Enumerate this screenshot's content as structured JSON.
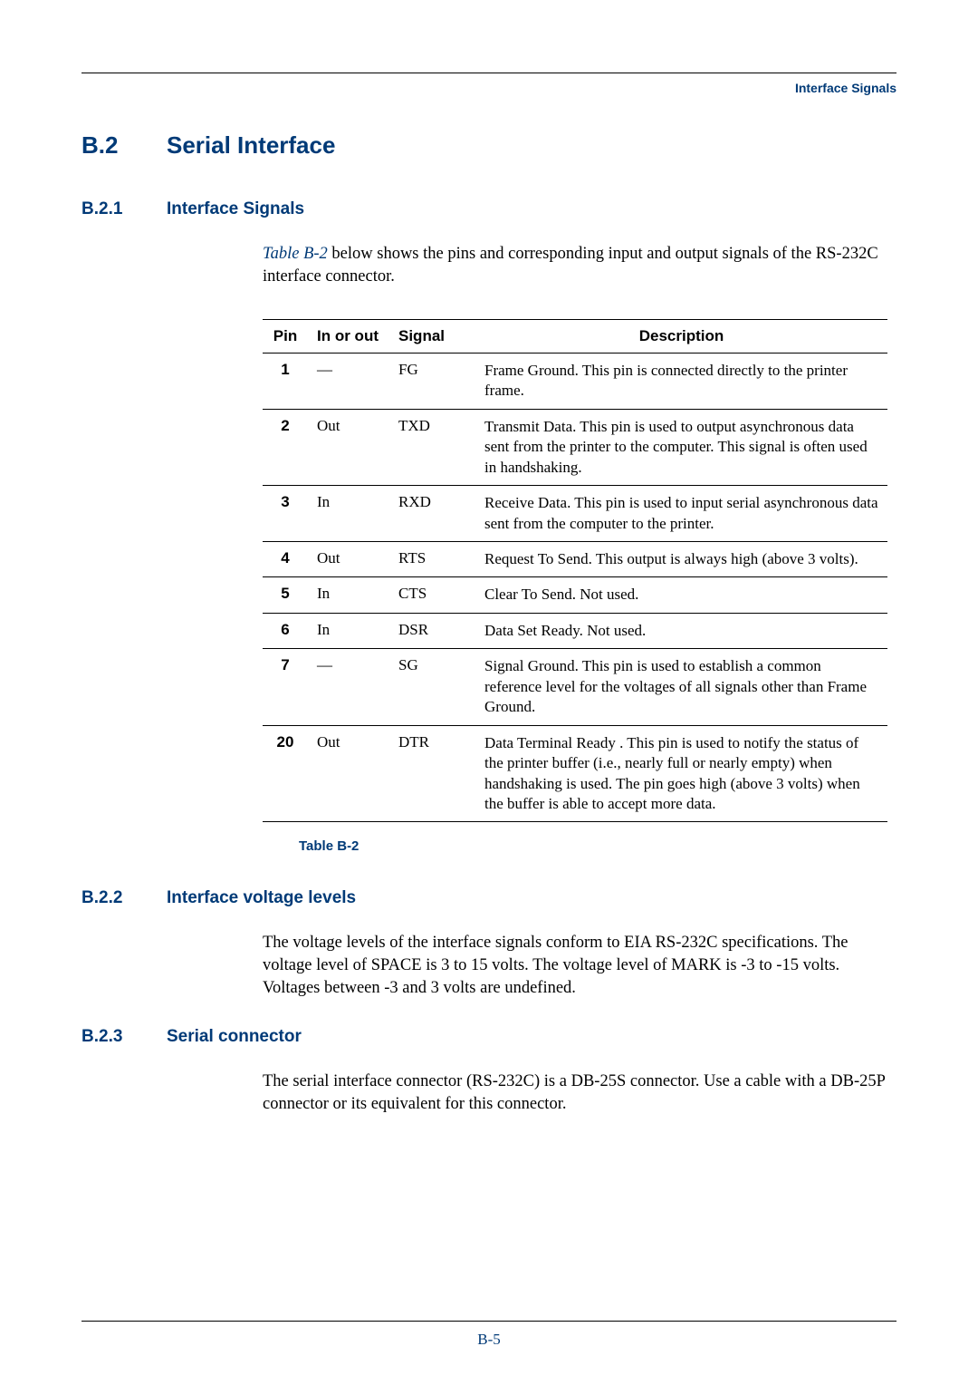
{
  "header": {
    "title": "Interface Signals"
  },
  "h1": {
    "num": "B.2",
    "title": "Serial Interface"
  },
  "sec1": {
    "num": "B.2.1",
    "title": "Interface Signals",
    "link": "Table B-2",
    "intro_rest": " below shows the pins and corresponding input and output signals of the RS-232C interface connector."
  },
  "table": {
    "headers": {
      "pin": "Pin",
      "io": "In or out",
      "signal": "Signal",
      "desc": "Description"
    },
    "rows": [
      {
        "pin": "1",
        "io": "—",
        "sig": "FG",
        "desc": "Frame Ground. This pin is connected directly to the printer frame."
      },
      {
        "pin": "2",
        "io": "Out",
        "sig": "TXD",
        "desc": "Transmit Data. This pin is used to output asynchronous data sent from the printer to the computer. This signal is often used in handshaking."
      },
      {
        "pin": "3",
        "io": "In",
        "sig": "RXD",
        "desc": "Receive Data. This pin is used to input serial asynchronous data sent from the computer to the printer."
      },
      {
        "pin": "4",
        "io": "Out",
        "sig": "RTS",
        "desc": "Request To Send. This output is always high (above 3 volts)."
      },
      {
        "pin": "5",
        "io": "In",
        "sig": "CTS",
        "desc": "Clear To Send. Not used."
      },
      {
        "pin": "6",
        "io": "In",
        "sig": "DSR",
        "desc": "Data Set Ready. Not used."
      },
      {
        "pin": "7",
        "io": "—",
        "sig": "SG",
        "desc": "Signal Ground. This pin is used to establish a common reference level for the voltages of all signals other than Frame Ground."
      },
      {
        "pin": "20",
        "io": "Out",
        "sig": "DTR",
        "desc": "Data Terminal Ready . This pin is used to notify the status of the printer buffer (i.e., nearly full or nearly empty) when handshaking is used. The pin goes high (above 3 volts) when the buffer is able to accept more data."
      }
    ],
    "caption": "Table B-2"
  },
  "sec2": {
    "num": "B.2.2",
    "title": "Interface voltage levels",
    "body": "The voltage levels of the interface signals conform to EIA RS-232C specifications. The voltage level of SPACE is 3 to 15 volts. The voltage level of MARK is -3 to -15 volts. Voltages between -3 and 3 volts are undefined."
  },
  "sec3": {
    "num": "B.2.3",
    "title": "Serial connector",
    "body": "The serial interface connector (RS-232C) is a DB-25S connector. Use a cable with a DB-25P connector or its equivalent for this connector."
  },
  "page": "B-5"
}
